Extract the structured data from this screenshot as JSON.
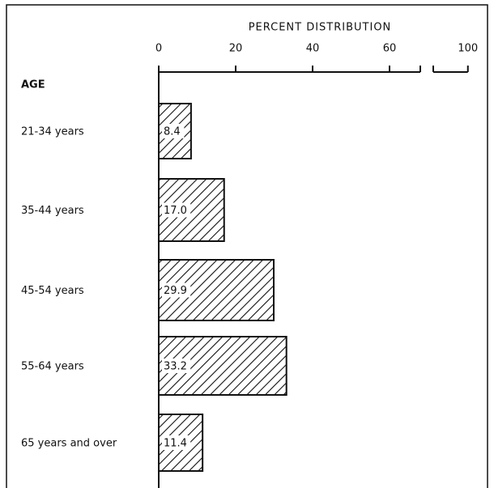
{
  "chart_data": {
    "type": "bar",
    "orientation": "horizontal",
    "title": "PERCENT DISTRIBUTION",
    "y_label": "AGE",
    "categories": [
      "21-34 years",
      "35-44 years",
      "45-54 years",
      "55-64 years",
      "65 years and over"
    ],
    "values": [
      8.4,
      17.0,
      29.9,
      33.2,
      11.4
    ],
    "value_labels": [
      "8.4",
      "17.0",
      "29.9",
      "33.2",
      "11.4"
    ],
    "xlim": [
      0,
      100
    ],
    "xticks": [
      0,
      20,
      40,
      60,
      100
    ],
    "axis_break": [
      68,
      91
    ],
    "color": "#111111",
    "pattern": "hatch"
  }
}
